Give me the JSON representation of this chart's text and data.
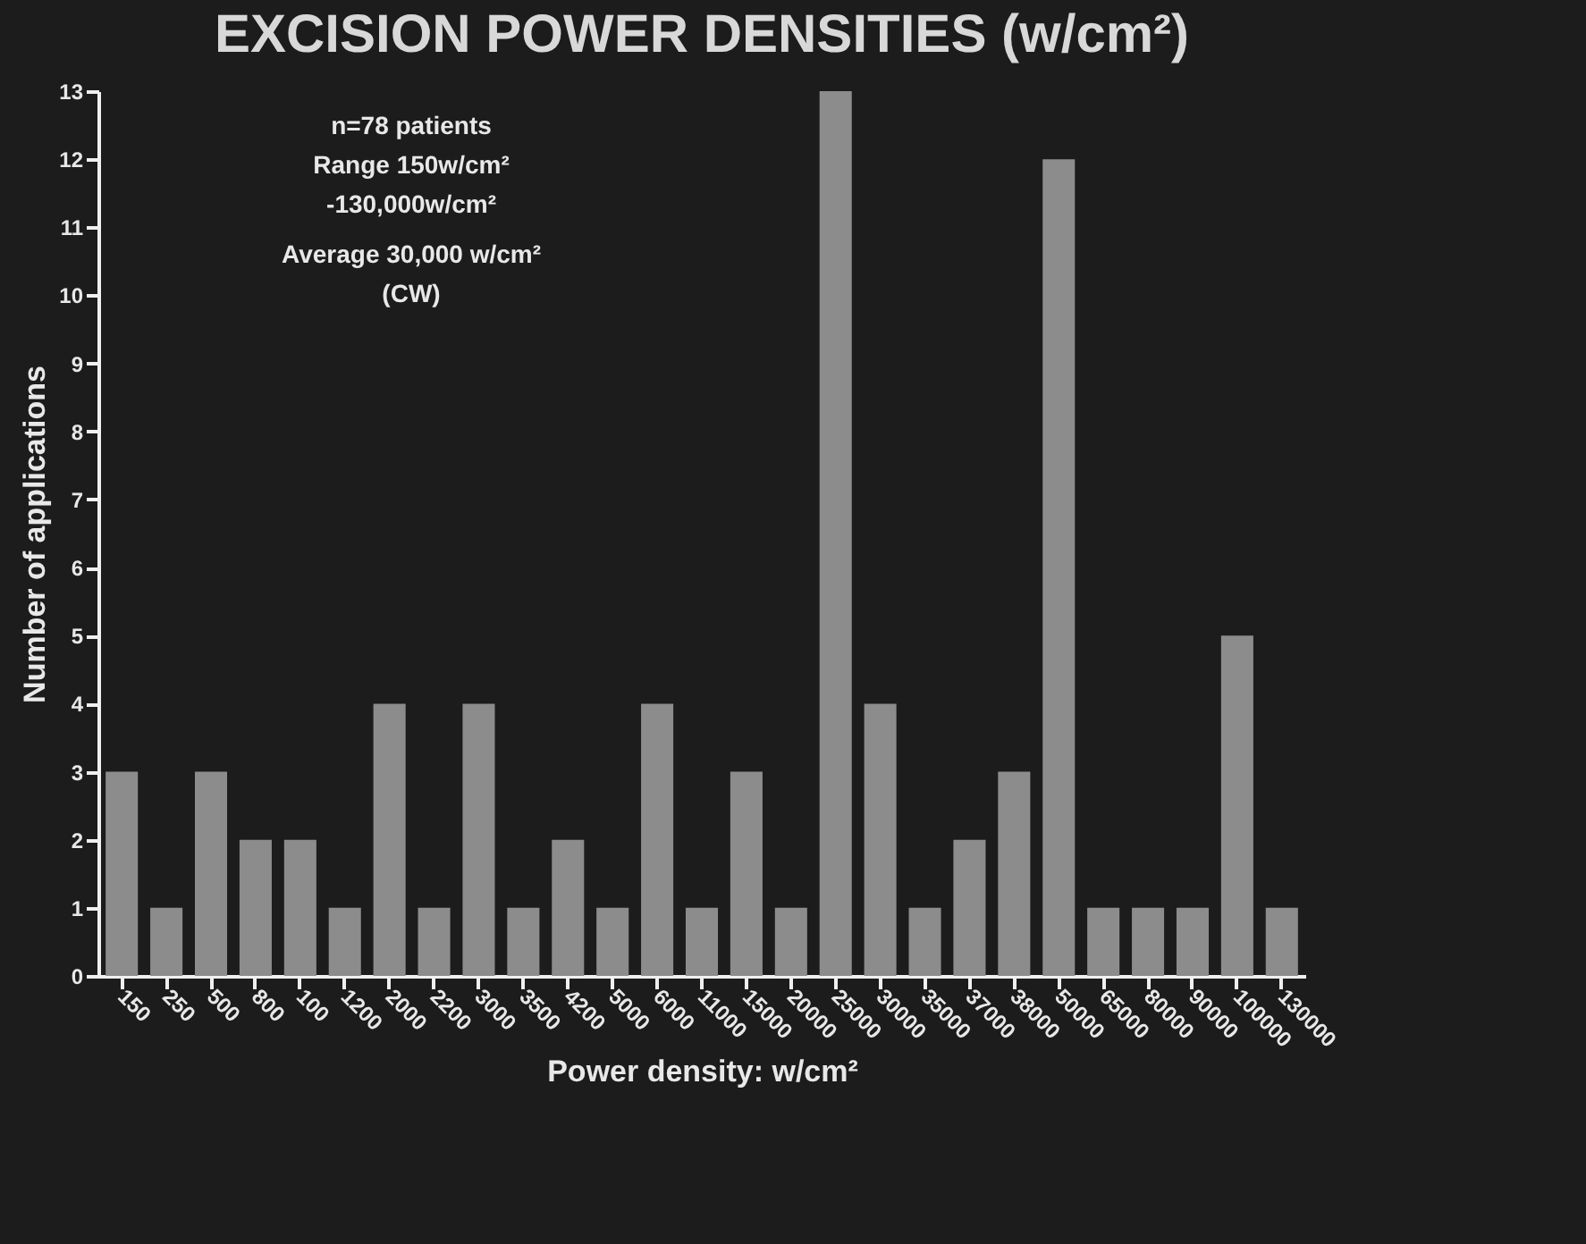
{
  "chart_data": {
    "type": "bar",
    "title": "EXCISION POWER DENSITIES (w/cm²)",
    "xlabel": "Power density: w/cm²",
    "ylabel": "Number of applications",
    "categories": [
      "150",
      "250",
      "500",
      "800",
      "100",
      "1200",
      "2000",
      "2200",
      "3000",
      "3500",
      "4200",
      "5000",
      "6000",
      "11000",
      "15000",
      "20000",
      "25000",
      "30000",
      "35000",
      "37000",
      "38000",
      "50000",
      "65000",
      "80000",
      "90000",
      "100000",
      "130000"
    ],
    "values": [
      3,
      1,
      3,
      2,
      2,
      1,
      4,
      1,
      4,
      1,
      2,
      1,
      4,
      1,
      3,
      1,
      13,
      4,
      1,
      2,
      3,
      12,
      1,
      1,
      1,
      5,
      1
    ],
    "color": "#8c8c8c",
    "ylim": [
      0,
      13
    ],
    "yticks": [
      0,
      1,
      2,
      3,
      4,
      5,
      6,
      7,
      8,
      9,
      10,
      11,
      12,
      13
    ],
    "grid": false,
    "annotations": [
      "n=78 patients",
      "Range 150w/cm²",
      "-130,000w/cm²",
      "Average 30,000 w/cm²",
      "(CW)"
    ]
  }
}
